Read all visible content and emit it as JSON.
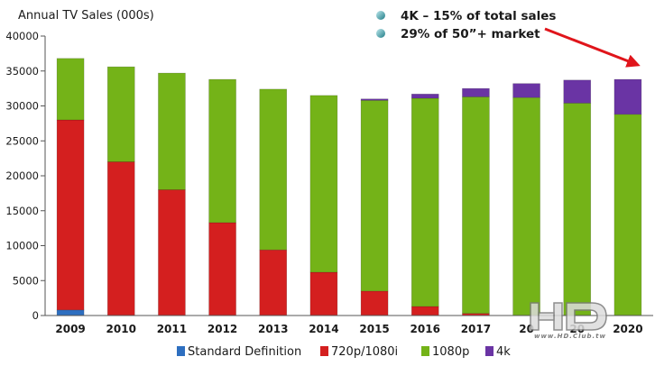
{
  "chart_data": {
    "type": "bar",
    "stacked": true,
    "title": "Annual TV Sales (000s)",
    "xlabel": "",
    "ylabel": "",
    "ylim": [
      0,
      40000
    ],
    "yticks": [
      0,
      5000,
      10000,
      15000,
      20000,
      25000,
      30000,
      35000,
      40000
    ],
    "categories": [
      "2009",
      "2010",
      "2011",
      "2012",
      "2013",
      "2014",
      "2015",
      "2016",
      "2017",
      "2018",
      "2019",
      "2020"
    ],
    "category_labels": [
      "2009",
      "2010",
      "2011",
      "2012",
      "2013",
      "2014",
      "2015",
      "2016",
      "2017",
      "20",
      "20",
      "2020"
    ],
    "series": [
      {
        "name": "Standard Definition",
        "color": "#2e6fc0",
        "values": [
          800,
          0,
          0,
          0,
          0,
          0,
          0,
          0,
          0,
          0,
          0,
          0
        ]
      },
      {
        "name": "720p/1080i",
        "color": "#d41f1f",
        "values": [
          27200,
          22000,
          18000,
          13300,
          9400,
          6200,
          3500,
          1300,
          300,
          0,
          0,
          0
        ]
      },
      {
        "name": "1080p",
        "color": "#74b318",
        "values": [
          8800,
          13600,
          16700,
          20500,
          23000,
          25300,
          27300,
          29800,
          31000,
          31200,
          30400,
          28800
        ]
      },
      {
        "name": "4k",
        "color": "#6a34a4",
        "values": [
          0,
          0,
          0,
          0,
          0,
          0,
          200,
          600,
          1200,
          2000,
          3300,
          5000
        ]
      }
    ],
    "annotations": [
      "4K – 15% of total sales",
      "29% of 50”+ market"
    ],
    "legend_position": "bottom",
    "grid": false
  },
  "colors": {
    "arrow": "#e0151b",
    "note_bullet": "#2b8a8a"
  },
  "watermark": {
    "url": "www.HD.Club.tw"
  }
}
